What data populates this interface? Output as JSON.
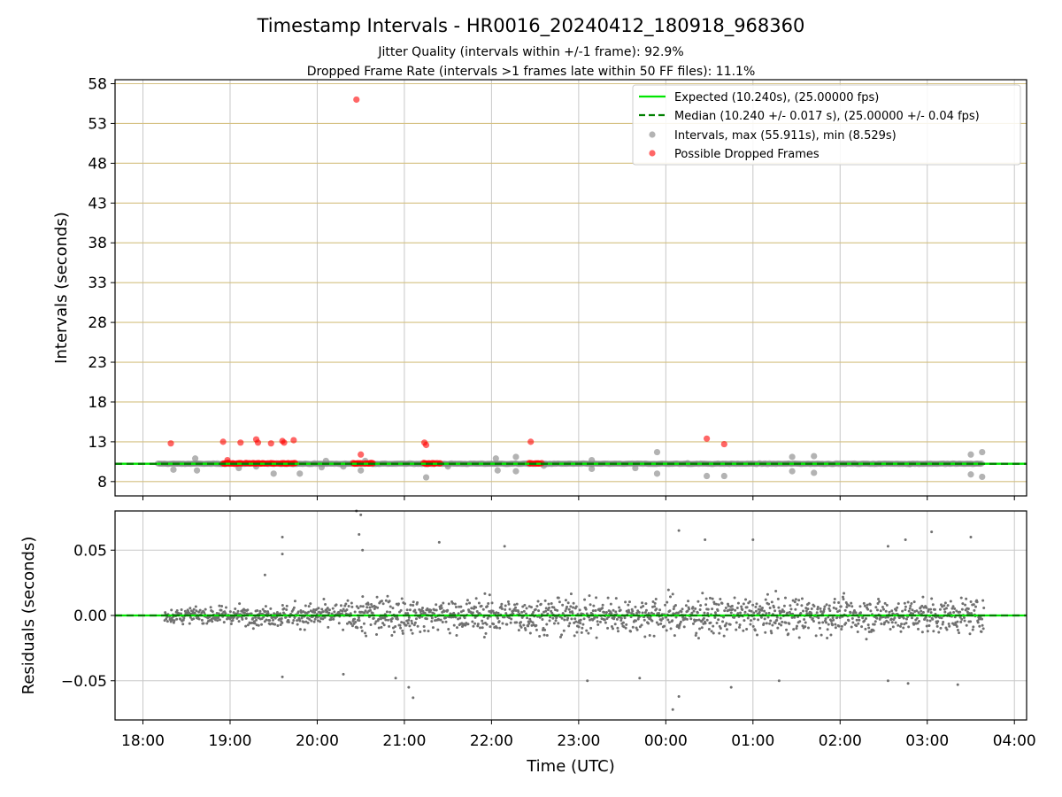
{
  "chart_data": [
    {
      "type": "scatter",
      "title": "Timestamp Intervals - HR0016_20240412_180918_968360",
      "subtitle": [
        "Jitter Quality (intervals within +/-1 frame): 92.9%",
        "Dropped Frame Rate (intervals >1 frames late within 50 FF files): 11.1%"
      ],
      "ylabel": "Intervals (seconds)",
      "xlabel": "",
      "ylim": [
        6.2,
        58.5
      ],
      "xlim": [
        "18:00",
        "04:00"
      ],
      "y_ticks": [
        "8",
        "13",
        "18",
        "23",
        "28",
        "33",
        "38",
        "43",
        "48",
        "53",
        "58"
      ],
      "grid": true,
      "legend_position": "top-right",
      "legend": [
        "Expected (10.240s), (25.00000 fps)",
        "Median (10.240 +/- 0.017 s), (25.00000 +/- 0.04 fps)",
        "Intervals, max (55.911s), min (8.529s)",
        "Possible Dropped Frames"
      ],
      "reference_lines": {
        "expected": 10.24,
        "median": 10.24
      },
      "series": [
        {
          "name": "Intervals, max (55.911s), min (8.529s)",
          "color": "#808080",
          "points": [
            [
              18.35,
              9.5
            ],
            [
              18.6,
              10.9
            ],
            [
              18.62,
              9.4
            ],
            [
              18.95,
              10.3
            ],
            [
              19.1,
              9.7
            ],
            [
              19.3,
              9.9
            ],
            [
              19.5,
              9.0
            ],
            [
              19.8,
              9.0
            ],
            [
              20.05,
              9.8
            ],
            [
              20.1,
              10.6
            ],
            [
              20.3,
              9.9
            ],
            [
              20.5,
              9.4
            ],
            [
              20.55,
              10.6
            ],
            [
              21.25,
              8.53
            ],
            [
              21.5,
              9.9
            ],
            [
              22.05,
              10.9
            ],
            [
              22.07,
              9.4
            ],
            [
              22.28,
              11.1
            ],
            [
              22.28,
              9.3
            ],
            [
              22.6,
              10.0
            ],
            [
              23.15,
              10.7
            ],
            [
              23.15,
              9.6
            ],
            [
              23.65,
              9.7
            ],
            [
              23.9,
              11.7
            ],
            [
              23.9,
              9.0
            ],
            [
              24.25,
              10.3
            ],
            [
              24.47,
              8.7
            ],
            [
              24.67,
              8.7
            ],
            [
              25.45,
              11.1
            ],
            [
              25.45,
              9.3
            ],
            [
              25.7,
              11.2
            ],
            [
              25.7,
              9.1
            ],
            [
              26.8,
              10.2
            ],
            [
              27.5,
              11.4
            ],
            [
              27.5,
              8.9
            ],
            [
              27.63,
              11.7
            ],
            [
              27.63,
              8.6
            ]
          ]
        },
        {
          "name": "Possible Dropped Frames",
          "color": "#ff0000",
          "points": [
            [
              18.32,
              12.8
            ],
            [
              18.92,
              13.0
            ],
            [
              18.97,
              10.7
            ],
            [
              19.12,
              12.9
            ],
            [
              19.3,
              13.3
            ],
            [
              19.32,
              12.9
            ],
            [
              19.47,
              12.8
            ],
            [
              19.6,
              13.1
            ],
            [
              19.62,
              12.9
            ],
            [
              19.73,
              13.2
            ],
            [
              20.45,
              56.0
            ],
            [
              20.5,
              11.4
            ],
            [
              21.23,
              12.9
            ],
            [
              21.25,
              12.6
            ],
            [
              22.45,
              13.0
            ],
            [
              24.47,
              13.4
            ],
            [
              24.67,
              12.7
            ]
          ],
          "clusters": [
            [
              18.92,
              19.75
            ],
            [
              20.4,
              20.65
            ],
            [
              21.22,
              21.42
            ],
            [
              22.42,
              22.58
            ]
          ]
        }
      ],
      "data_span": [
        18.17,
        27.63
      ]
    },
    {
      "type": "scatter",
      "ylabel": "Residuals (seconds)",
      "xlabel": "Time (UTC)",
      "ylim": [
        -0.08,
        0.08
      ],
      "y_ticks": [
        "−0.05",
        "0.00",
        "0.05"
      ],
      "x_ticks": [
        "18:00",
        "19:00",
        "20:00",
        "21:00",
        "22:00",
        "23:00",
        "00:00",
        "01:00",
        "02:00",
        "03:00",
        "04:00"
      ],
      "grid": true,
      "zero_line": 0.0,
      "series": [
        {
          "name": "Residuals",
          "color": "#707070",
          "envelope": [
            [
              18.25,
              0.01
            ],
            [
              19.5,
              0.014
            ],
            [
              20.4,
              0.02
            ],
            [
              20.55,
              0.03
            ],
            [
              21.0,
              0.022
            ],
            [
              22.0,
              0.024
            ],
            [
              23.0,
              0.025
            ],
            [
              24.0,
              0.026
            ],
            [
              25.0,
              0.025
            ],
            [
              26.0,
              0.024
            ],
            [
              27.0,
              0.023
            ],
            [
              27.65,
              0.022
            ]
          ],
          "outliers": [
            [
              19.4,
              0.031
            ],
            [
              19.6,
              0.06
            ],
            [
              19.6,
              0.047
            ],
            [
              19.6,
              -0.047
            ],
            [
              20.3,
              -0.045
            ],
            [
              20.45,
              0.08
            ],
            [
              20.5,
              0.077
            ],
            [
              20.48,
              0.062
            ],
            [
              20.52,
              0.05
            ],
            [
              20.9,
              -0.048
            ],
            [
              21.05,
              -0.055
            ],
            [
              21.1,
              -0.063
            ],
            [
              21.4,
              0.056
            ],
            [
              22.15,
              0.053
            ],
            [
              23.1,
              -0.05
            ],
            [
              23.7,
              -0.048
            ],
            [
              24.08,
              -0.072
            ],
            [
              24.15,
              0.065
            ],
            [
              24.15,
              -0.062
            ],
            [
              24.45,
              0.058
            ],
            [
              24.75,
              -0.055
            ],
            [
              26.55,
              0.053
            ],
            [
              26.55,
              -0.05
            ],
            [
              26.75,
              0.058
            ],
            [
              26.78,
              -0.052
            ],
            [
              27.05,
              0.064
            ],
            [
              27.35,
              -0.053
            ],
            [
              27.5,
              0.06
            ],
            [
              25.0,
              0.058
            ],
            [
              25.3,
              -0.05
            ]
          ]
        }
      ]
    }
  ],
  "colors": {
    "expected_line": "#00e600",
    "median_line": "#008000",
    "interval_points": "#808080",
    "dropped_points": "#ff0000",
    "residual_points": "#707070",
    "y_grid_top": "#d4c080",
    "grid": "#c8c8c8"
  }
}
